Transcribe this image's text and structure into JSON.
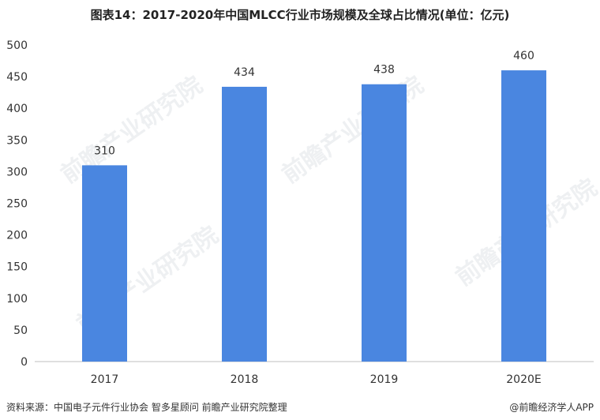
{
  "title": "图表14：2017-2020年中国MLCC行业市场规模及全球占比情况(单位：亿元)",
  "source": "资料来源：中国电子元件行业协会 智多星顾问 前瞻产业研究院整理",
  "brand": "@前瞻经济学人APP",
  "watermark": "前瞻产业研究院",
  "colors": {
    "bar": "#4A86E0",
    "axis": "#BFBFBF",
    "text": "#333333"
  },
  "chart_data": {
    "type": "bar",
    "title": "图表14：2017-2020年中国MLCC行业市场规模及全球占比情况(单位：亿元)",
    "categories": [
      "2017",
      "2018",
      "2019",
      "2020E"
    ],
    "values": [
      310,
      434,
      438,
      460
    ],
    "ylim": [
      0,
      500
    ],
    "yticks": [
      0,
      50,
      100,
      150,
      200,
      250,
      300,
      350,
      400,
      450,
      500
    ],
    "grid": false,
    "legend": "none"
  }
}
